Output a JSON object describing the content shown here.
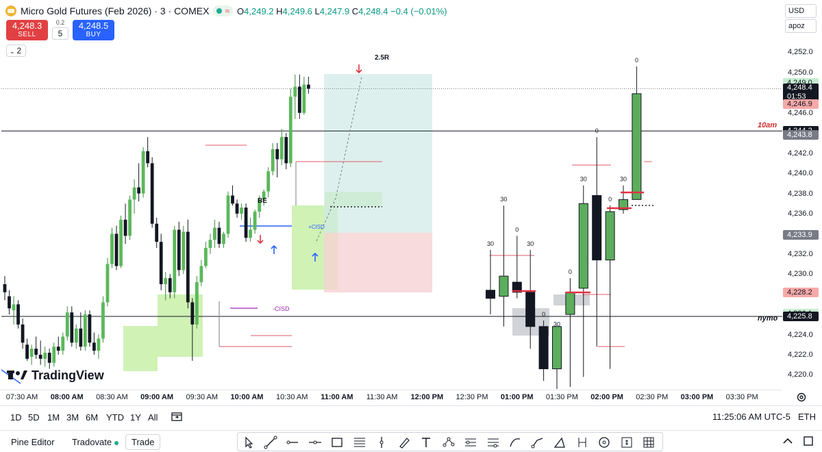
{
  "header": {
    "symbol_icon": "gold-coin-icon",
    "title": "Micro Gold Futures (Feb 2026) · 3 · COMEX",
    "status_icon": "market-open-dot-icon",
    "status_wave": "≈",
    "ohlc": {
      "o_label": "O",
      "o": "4,249.2",
      "h_label": "H",
      "h": "4,249.6",
      "l_label": "L",
      "l": "4,247.9",
      "c_label": "C",
      "c": "4,248.4",
      "change": "−0.4 (−0.01%)"
    }
  },
  "order_panel": {
    "sell_price": "4,248.3",
    "sell_label": "SELL",
    "spread": "0.2",
    "quantity": "5",
    "buy_price": "4,248.5",
    "buy_label": "BUY"
  },
  "legend_toggle": {
    "icon": "chevron-down-icon",
    "count": "2"
  },
  "right_controls": {
    "currency": "USD",
    "account": "apoz"
  },
  "price_scale": {
    "ticks": [
      "4,252.0",
      "4,250.0",
      "4,246.0",
      "4,242.0",
      "4,240.0",
      "4,238.0",
      "4,236.0",
      "4,232.0",
      "4,230.0",
      "4,224.0",
      "4,222.0",
      "4,220.0"
    ],
    "labels": [
      {
        "text": "4,249.0",
        "bg": "#c8ecd2",
        "fg": "#131722"
      },
      {
        "text": "4,248.4",
        "sub": "01:53",
        "bg": "#131722",
        "fg": "#ffffff"
      },
      {
        "text": "4,246.9",
        "bg": "#f7a9a8",
        "fg": "#131722"
      },
      {
        "text": "4,244.2",
        "bg": "#131722",
        "fg": "#ffffff"
      },
      {
        "text": "4,243.8",
        "bg": "#787b86",
        "fg": "#ffffff"
      },
      {
        "text": "4,233.9",
        "bg": "#787b86",
        "fg": "#ffffff"
      },
      {
        "text": "4,228.2",
        "bg": "#f7a9a8",
        "fg": "#131722"
      },
      {
        "text": "4,226.1",
        "bg": "#c8ecd2",
        "fg": "#131722"
      },
      {
        "text": "4,225.8",
        "bg": "#131722",
        "fg": "#ffffff"
      }
    ]
  },
  "time_axis": {
    "ticks": [
      {
        "text": "07:30 AM",
        "bold": false
      },
      {
        "text": "08:00 AM",
        "bold": true
      },
      {
        "text": "08:30 AM",
        "bold": false
      },
      {
        "text": "09:00 AM",
        "bold": true
      },
      {
        "text": "09:30 AM",
        "bold": false
      },
      {
        "text": "10:00 AM",
        "bold": true
      },
      {
        "text": "10:30 AM",
        "bold": false
      },
      {
        "text": "11:00 AM",
        "bold": true
      },
      {
        "text": "11:30 AM",
        "bold": false
      },
      {
        "text": "12:00 PM",
        "bold": true
      },
      {
        "text": "12:30 PM",
        "bold": false
      },
      {
        "text": "01:00 PM",
        "bold": true
      },
      {
        "text": "01:30 PM",
        "bold": false
      },
      {
        "text": "02:00 PM",
        "bold": true
      },
      {
        "text": "02:30 PM",
        "bold": false
      },
      {
        "text": "03:00 PM",
        "bold": true
      },
      {
        "text": "03:30 PM",
        "bold": false
      }
    ],
    "settings_icon": "gear-icon"
  },
  "annotations": {
    "r_multiple": "2.5R",
    "breakeven": "BE",
    "cisd": "-CISD",
    "cisd_plus": "+CISD",
    "level_10am": "10am",
    "level_nymo": "nymo",
    "htf_counts": [
      "30",
      "30",
      "0",
      "0",
      "30",
      "30",
      "0",
      "30",
      "0",
      "30",
      "0",
      "0",
      "30",
      "0"
    ]
  },
  "watermark": {
    "icon": "tradingview-logo-icon",
    "text": "TradingView"
  },
  "range_bar": {
    "ranges": [
      "1D",
      "5D",
      "1M",
      "3M",
      "6M",
      "YTD",
      "1Y",
      "All"
    ],
    "goto_icon": "calendar-goto-icon",
    "clock": "11:25:06 AM UTC-5",
    "exchange": "ETH"
  },
  "bottom_bar": {
    "tabs": [
      "Pine Editor",
      "Tradovate",
      "Trade"
    ],
    "tools": [
      "cursor-icon",
      "trendline-icon",
      "horizontal-ray-icon",
      "horizontal-line-icon",
      "rectangle-icon",
      "fib-retracement-icon",
      "vertical-line-icon",
      "brush-icon",
      "text-icon",
      "pattern-icon",
      "long-position-icon",
      "fib-channel-icon",
      "curve-icon",
      "path-icon",
      "triangle-icon",
      "date-range-icon",
      "circle-icon",
      "price-range-icon",
      "gann-box-icon"
    ],
    "collapse_icon": "chevron-up-icon",
    "maximize_icon": "maximize-icon"
  },
  "chart_data": {
    "type": "candlestick",
    "instrument": "Micro Gold Futures (Feb 2026)",
    "timeframe": "3",
    "exchange": "COMEX",
    "price_range": [
      4218.6,
      4253.8
    ],
    "ltf_candles": [
      [
        4229.0,
        4229.8,
        4227.4,
        4228.2
      ],
      [
        4227.8,
        4228.4,
        4226.0,
        4226.6
      ],
      [
        4226.4,
        4227.8,
        4225.0,
        4227.0
      ],
      [
        4227.0,
        4227.4,
        4224.6,
        4225.0
      ],
      [
        4225.0,
        4225.6,
        4222.6,
        4223.2
      ],
      [
        4223.0,
        4223.6,
        4221.4,
        4221.6
      ],
      [
        4221.8,
        4223.0,
        4221.0,
        4222.6
      ],
      [
        4222.6,
        4223.8,
        4221.6,
        4222.0
      ],
      [
        4222.0,
        4223.4,
        4221.0,
        4221.6
      ],
      [
        4221.6,
        4222.8,
        4220.8,
        4222.2
      ],
      [
        4222.2,
        4222.6,
        4220.6,
        4221.2
      ],
      [
        4221.2,
        4223.2,
        4220.8,
        4222.8
      ],
      [
        4222.8,
        4223.8,
        4222.0,
        4222.4
      ],
      [
        4222.4,
        4224.2,
        4222.0,
        4223.8
      ],
      [
        4223.8,
        4226.8,
        4223.4,
        4226.2
      ],
      [
        4226.2,
        4226.8,
        4222.8,
        4223.2
      ],
      [
        4223.2,
        4225.0,
        4222.6,
        4224.6
      ],
      [
        4224.6,
        4226.2,
        4222.4,
        4222.8
      ],
      [
        4222.8,
        4226.4,
        4222.4,
        4226.0
      ],
      [
        4226.0,
        4226.4,
        4222.8,
        4223.2
      ],
      [
        4223.2,
        4224.2,
        4222.0,
        4222.4
      ],
      [
        4222.4,
        4224.0,
        4221.6,
        4223.6
      ],
      [
        4223.6,
        4227.8,
        4223.2,
        4227.2
      ],
      [
        4227.2,
        4231.6,
        4226.8,
        4231.0
      ],
      [
        4231.0,
        4234.6,
        4230.6,
        4234.0
      ],
      [
        4234.0,
        4234.8,
        4230.4,
        4230.8
      ],
      [
        4230.8,
        4235.8,
        4230.6,
        4235.4
      ],
      [
        4235.4,
        4237.0,
        4233.0,
        4233.8
      ],
      [
        4233.8,
        4237.8,
        4233.4,
        4237.4
      ],
      [
        4237.4,
        4239.4,
        4236.0,
        4238.6
      ],
      [
        4238.6,
        4241.0,
        4237.2,
        4238.0
      ],
      [
        4238.0,
        4242.6,
        4237.6,
        4242.2
      ],
      [
        4242.2,
        4243.6,
        4240.6,
        4241.0
      ],
      [
        4241.0,
        4241.6,
        4234.6,
        4235.0
      ],
      [
        4235.0,
        4235.6,
        4232.6,
        4233.2
      ],
      [
        4233.2,
        4234.0,
        4228.4,
        4229.0
      ],
      [
        4229.0,
        4230.2,
        4227.4,
        4229.6
      ],
      [
        4229.6,
        4230.0,
        4227.6,
        4228.2
      ],
      [
        4228.2,
        4234.8,
        4227.6,
        4234.4
      ],
      [
        4234.4,
        4235.2,
        4229.8,
        4230.4
      ],
      [
        4230.4,
        4234.8,
        4230.0,
        4234.2
      ],
      [
        4234.2,
        4235.4,
        4226.6,
        4227.2
      ],
      [
        4227.2,
        4227.6,
        4221.4,
        4225.0
      ],
      [
        4225.0,
        4229.8,
        4224.6,
        4229.2
      ],
      [
        4229.2,
        4231.4,
        4228.8,
        4230.8
      ],
      [
        4230.8,
        4233.2,
        4230.6,
        4232.6
      ],
      [
        4232.6,
        4234.0,
        4232.0,
        4233.4
      ],
      [
        4233.4,
        4235.4,
        4232.6,
        4234.6
      ],
      [
        4234.6,
        4235.2,
        4232.6,
        4233.0
      ],
      [
        4233.0,
        4234.2,
        4232.6,
        4234.0
      ],
      [
        4234.0,
        4238.2,
        4233.6,
        4237.8
      ],
      [
        4237.8,
        4238.8,
        4236.8,
        4237.0
      ],
      [
        4237.0,
        4237.4,
        4235.6,
        4236.0
      ],
      [
        4236.0,
        4237.0,
        4235.4,
        4236.6
      ],
      [
        4236.6,
        4237.0,
        4233.2,
        4233.6
      ],
      [
        4233.6,
        4235.6,
        4233.2,
        4234.4
      ],
      [
        4234.4,
        4236.4,
        4234.0,
        4236.2
      ],
      [
        4236.2,
        4237.8,
        4235.6,
        4237.4
      ],
      [
        4237.4,
        4238.4,
        4236.8,
        4238.2
      ],
      [
        4238.2,
        4240.6,
        4237.6,
        4240.2
      ],
      [
        4240.2,
        4243.0,
        4239.8,
        4242.4
      ],
      [
        4242.4,
        4243.0,
        4239.6,
        4241.4
      ],
      [
        4241.4,
        4244.4,
        4240.8,
        4243.6
      ],
      [
        4243.6,
        4244.0,
        4240.4,
        4241.0
      ],
      [
        4241.0,
        4248.4,
        4240.6,
        4247.6
      ],
      [
        4247.6,
        4249.8,
        4245.4,
        4248.6
      ],
      [
        4248.6,
        4249.8,
        4245.4,
        4246.0
      ],
      [
        4246.0,
        4249.6,
        4245.8,
        4248.8
      ],
      [
        4248.8,
        4249.6,
        4247.9,
        4248.4
      ]
    ],
    "htf_candles": [
      {
        "o": 4228.4,
        "h": 4232.4,
        "l": 4226.0,
        "c": 4227.6,
        "count": "30"
      },
      {
        "o": 4227.8,
        "h": 4236.8,
        "l": 4224.8,
        "c": 4229.8,
        "count": "30"
      },
      {
        "o": 4229.2,
        "h": 4233.8,
        "l": 4227.6,
        "c": 4228.2,
        "count": "0"
      },
      {
        "o": 4228.2,
        "h": 4232.4,
        "l": 4222.6,
        "c": 4224.8,
        "count": "30"
      },
      {
        "o": 4224.8,
        "h": 4225.4,
        "l": 4219.4,
        "c": 4220.6,
        "count": "0"
      },
      {
        "o": 4220.6,
        "h": 4224.4,
        "l": 4218.6,
        "c": 4224.8,
        "count": "30"
      },
      {
        "o": 4226.0,
        "h": 4229.6,
        "l": 4218.8,
        "c": 4228.2,
        "count": "0"
      },
      {
        "o": 4228.6,
        "h": 4238.8,
        "l": 4219.8,
        "c": 4237.0,
        "count": "30"
      },
      {
        "o": 4237.8,
        "h": 4243.6,
        "l": 4222.8,
        "c": 4231.4,
        "count": "0"
      },
      {
        "o": 4231.4,
        "h": 4236.8,
        "l": 4220.6,
        "c": 4236.2,
        "count": "0"
      },
      {
        "o": 4236.4,
        "h": 4238.8,
        "l": 4236.0,
        "c": 4237.4,
        "count": "30"
      },
      {
        "o": 4237.4,
        "h": 4250.6,
        "l": 4237.4,
        "c": 4247.9,
        "count": "0"
      }
    ],
    "levels": [
      {
        "name": "10am",
        "price": 4244.2
      },
      {
        "name": "nymo",
        "price": 4225.8
      },
      {
        "name": "current",
        "price": 4248.4
      }
    ],
    "position": {
      "type": "long",
      "entry": 4233.9,
      "target": 4249.0,
      "stop": 4228.2,
      "label": "2.5R"
    }
  }
}
